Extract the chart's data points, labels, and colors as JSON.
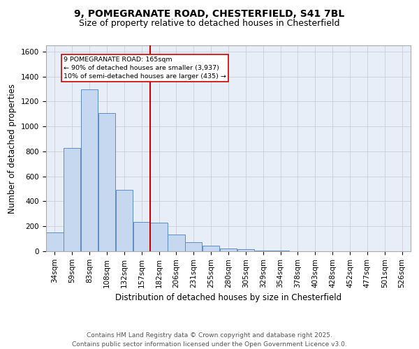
{
  "title_line1": "9, POMEGRANATE ROAD, CHESTERFIELD, S41 7BL",
  "title_line2": "Size of property relative to detached houses in Chesterfield",
  "xlabel": "Distribution of detached houses by size in Chesterfield",
  "ylabel": "Number of detached properties",
  "bar_color": "#c5d8f0",
  "bar_edge_color": "#5b8dc8",
  "background_color": "#e8eef8",
  "grid_color": "#c8cfd8",
  "vline_x": 4,
  "vline_color": "#cc0000",
  "annotation_text": "9 POMEGRANATE ROAD: 165sqm\n← 90% of detached houses are smaller (3,937)\n10% of semi-detached houses are larger (435) →",
  "annotation_box_color": "#ffffff",
  "annotation_box_edge": "#cc0000",
  "categories": [
    "34sqm",
    "59sqm",
    "83sqm",
    "108sqm",
    "132sqm",
    "157sqm",
    "182sqm",
    "206sqm",
    "231sqm",
    "255sqm",
    "280sqm",
    "305sqm",
    "329sqm",
    "354sqm",
    "378sqm",
    "403sqm",
    "428sqm",
    "452sqm",
    "477sqm",
    "501sqm",
    "526sqm"
  ],
  "heights": [
    150,
    830,
    1300,
    1110,
    490,
    235,
    230,
    135,
    70,
    42,
    25,
    14,
    5,
    3,
    1,
    0,
    1,
    0,
    0,
    0,
    0
  ],
  "ylim": [
    0,
    1650
  ],
  "yticks": [
    0,
    200,
    400,
    600,
    800,
    1000,
    1200,
    1400,
    1600
  ],
  "footer_text": "Contains HM Land Registry data © Crown copyright and database right 2025.\nContains public sector information licensed under the Open Government Licence v3.0.",
  "title_fontsize": 10,
  "subtitle_fontsize": 9,
  "axis_label_fontsize": 8.5,
  "tick_fontsize": 7.5,
  "footer_fontsize": 6.5
}
